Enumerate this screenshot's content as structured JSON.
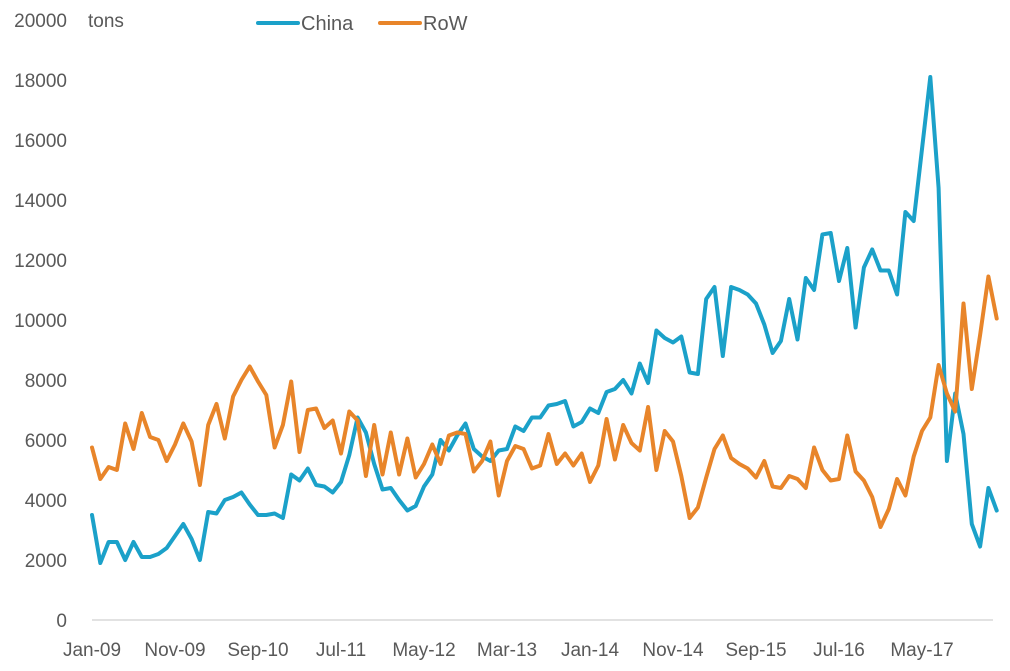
{
  "chart_data": {
    "type": "line",
    "ylabel": "tons",
    "ylim": [
      0,
      20000
    ],
    "yticks": [
      0,
      2000,
      4000,
      6000,
      8000,
      10000,
      12000,
      14000,
      16000,
      18000,
      20000
    ],
    "xtick_labels": [
      "Jan-09",
      "Nov-09",
      "Sep-10",
      "Jul-11",
      "May-12",
      "Mar-13",
      "Jan-14",
      "Nov-14",
      "Sep-15",
      "Jul-16",
      "May-17"
    ],
    "xtick_interval_months": 10,
    "x_start": "Jan-09",
    "legend_position": "top",
    "grid": false,
    "series": [
      {
        "name": "China",
        "color": "#1ba1c9",
        "values": [
          3500,
          1900,
          2600,
          2600,
          2000,
          2600,
          2100,
          2100,
          2200,
          2400,
          2800,
          3200,
          2700,
          2000,
          3600,
          3550,
          4000,
          4100,
          4250,
          3850,
          3500,
          3500,
          3550,
          3400,
          4850,
          4650,
          5050,
          4500,
          4450,
          4250,
          4600,
          5500,
          6750,
          6250,
          5200,
          4350,
          4400,
          4000,
          3650,
          3800,
          4450,
          4850,
          6000,
          5650,
          6150,
          6550,
          5700,
          5450,
          5300,
          5650,
          5700,
          6450,
          6300,
          6750,
          6750,
          7150,
          7200,
          7300,
          6450,
          6600,
          7050,
          6900,
          7600,
          7700,
          8000,
          7550,
          8550,
          7900,
          9650,
          9400,
          9250,
          9450,
          8250,
          8200,
          10700,
          11100,
          8800,
          11100,
          11000,
          10850,
          10550,
          9850,
          8900,
          9300,
          10700,
          9350,
          11400,
          11000,
          12850,
          12900,
          11300,
          12400,
          9750,
          11750,
          12350,
          11650,
          11650,
          10850,
          13600,
          13300,
          15700,
          18100,
          14400,
          5300,
          7550,
          6200,
          3200,
          2450,
          4400,
          3650
        ],
        "labels": [
          "Jan-09",
          "Feb-09",
          "Mar-09",
          "Apr-09",
          "May-09",
          "Jun-09",
          "Jul-09",
          "Aug-09",
          "Sep-09",
          "Oct-09",
          "Nov-09",
          "Dec-09",
          "Jan-10",
          "Feb-10",
          "Mar-10",
          "Apr-10",
          "May-10",
          "Jun-10",
          "Jul-10",
          "Aug-10",
          "Sep-10",
          "Oct-10",
          "Nov-10",
          "Dec-10",
          "Jan-11",
          "Feb-11",
          "Mar-11",
          "Apr-11",
          "May-11",
          "Jun-11",
          "Jul-11",
          "Aug-11",
          "Sep-11",
          "Oct-11",
          "Nov-11",
          "Dec-11",
          "Jan-12",
          "Feb-12",
          "Mar-12",
          "Apr-12",
          "May-12",
          "Jun-12",
          "Jul-12",
          "Aug-12",
          "Sep-12",
          "Oct-12",
          "Nov-12",
          "Dec-12",
          "Jan-13",
          "Feb-13",
          "Mar-13",
          "Apr-13",
          "May-13",
          "Jun-13",
          "Jul-13",
          "Aug-13",
          "Sep-13",
          "Oct-13",
          "Nov-13",
          "Dec-13",
          "Jan-14",
          "Feb-14",
          "Mar-14",
          "Apr-14",
          "May-14",
          "Jun-14",
          "Jul-14",
          "Aug-14",
          "Sep-14",
          "Oct-14",
          "Nov-14",
          "Dec-14",
          "Jan-15",
          "Feb-15",
          "Mar-15",
          "Apr-15",
          "May-15",
          "Jun-15",
          "Jul-15",
          "Aug-15",
          "Sep-15",
          "Oct-15",
          "Nov-15",
          "Dec-15",
          "Jan-16",
          "Feb-16",
          "Mar-16",
          "Apr-16",
          "May-16",
          "Jun-16",
          "Jul-16",
          "Aug-16",
          "Sep-16",
          "Oct-16",
          "Nov-16",
          "Dec-16",
          "Jan-17",
          "Feb-17",
          "Mar-17",
          "Apr-17",
          "May-17",
          "Jun-17",
          "Jul-17",
          "Aug-17",
          "Sep-17",
          "Oct-17",
          "Nov-17",
          "Dec-17",
          "Jan-18",
          "Feb-18"
        ]
      },
      {
        "name": "RoW",
        "color": "#e8852a",
        "values": [
          5750,
          4700,
          5100,
          5000,
          6550,
          5700,
          6900,
          6100,
          6000,
          5300,
          5850,
          6550,
          5950,
          4500,
          6500,
          7200,
          6050,
          7450,
          8000,
          8450,
          7950,
          7500,
          5750,
          6500,
          7950,
          5600,
          7000,
          7050,
          6400,
          6650,
          5550,
          6950,
          6650,
          4800,
          6500,
          4850,
          6250,
          4850,
          6050,
          4750,
          5200,
          5850,
          5200,
          6150,
          6250,
          6200,
          4950,
          5300,
          5950,
          4150,
          5300,
          5800,
          5700,
          5050,
          5150,
          6200,
          5200,
          5550,
          5150,
          5550,
          4600,
          5150,
          6700,
          5350,
          6500,
          5900,
          5650,
          7100,
          5000,
          6300,
          5950,
          4800,
          3400,
          3750,
          4750,
          5700,
          6150,
          5400,
          5200,
          5050,
          4750,
          5300,
          4450,
          4400,
          4800,
          4700,
          4400,
          5750,
          5000,
          4650,
          4700,
          6150,
          4950,
          4650,
          4100,
          3100,
          3700,
          4700,
          4150,
          5450,
          6300,
          6750,
          8500,
          7550,
          6950,
          10550,
          7700,
          9500,
          11450,
          10050
        ],
        "labels": [
          "Jan-09",
          "Feb-09",
          "Mar-09",
          "Apr-09",
          "May-09",
          "Jun-09",
          "Jul-09",
          "Aug-09",
          "Sep-09",
          "Oct-09",
          "Nov-09",
          "Dec-09",
          "Jan-10",
          "Feb-10",
          "Mar-10",
          "Apr-10",
          "May-10",
          "Jun-10",
          "Jul-10",
          "Aug-10",
          "Sep-10",
          "Oct-10",
          "Nov-10",
          "Dec-10",
          "Jan-11",
          "Feb-11",
          "Mar-11",
          "Apr-11",
          "May-11",
          "Jun-11",
          "Jul-11",
          "Aug-11",
          "Sep-11",
          "Oct-11",
          "Nov-11",
          "Dec-11",
          "Jan-12",
          "Feb-12",
          "Mar-12",
          "Apr-12",
          "May-12",
          "Jun-12",
          "Jul-12",
          "Aug-12",
          "Sep-12",
          "Oct-12",
          "Nov-12",
          "Dec-12",
          "Jan-13",
          "Feb-13",
          "Mar-13",
          "Apr-13",
          "May-13",
          "Jun-13",
          "Jul-13",
          "Aug-13",
          "Sep-13",
          "Oct-13",
          "Nov-13",
          "Dec-13",
          "Jan-14",
          "Feb-14",
          "Mar-14",
          "Apr-14",
          "May-14",
          "Jun-14",
          "Jul-14",
          "Aug-14",
          "Sep-14",
          "Oct-14",
          "Nov-14",
          "Dec-14",
          "Jan-15",
          "Feb-15",
          "Mar-15",
          "Apr-15",
          "May-15",
          "Jun-15",
          "Jul-15",
          "Aug-15",
          "Sep-15",
          "Oct-15",
          "Nov-15",
          "Dec-15",
          "Jan-16",
          "Feb-16",
          "Mar-16",
          "Apr-16",
          "May-16",
          "Jun-16",
          "Jul-16",
          "Aug-16",
          "Sep-16",
          "Oct-16",
          "Nov-16",
          "Dec-16",
          "Jan-17",
          "Feb-17",
          "Mar-17",
          "Apr-17",
          "May-17",
          "Jun-17",
          "Jul-17",
          "Aug-17",
          "Sep-17",
          "Oct-17",
          "Nov-17",
          "Dec-17",
          "Jan-18",
          "Feb-18"
        ]
      }
    ]
  }
}
